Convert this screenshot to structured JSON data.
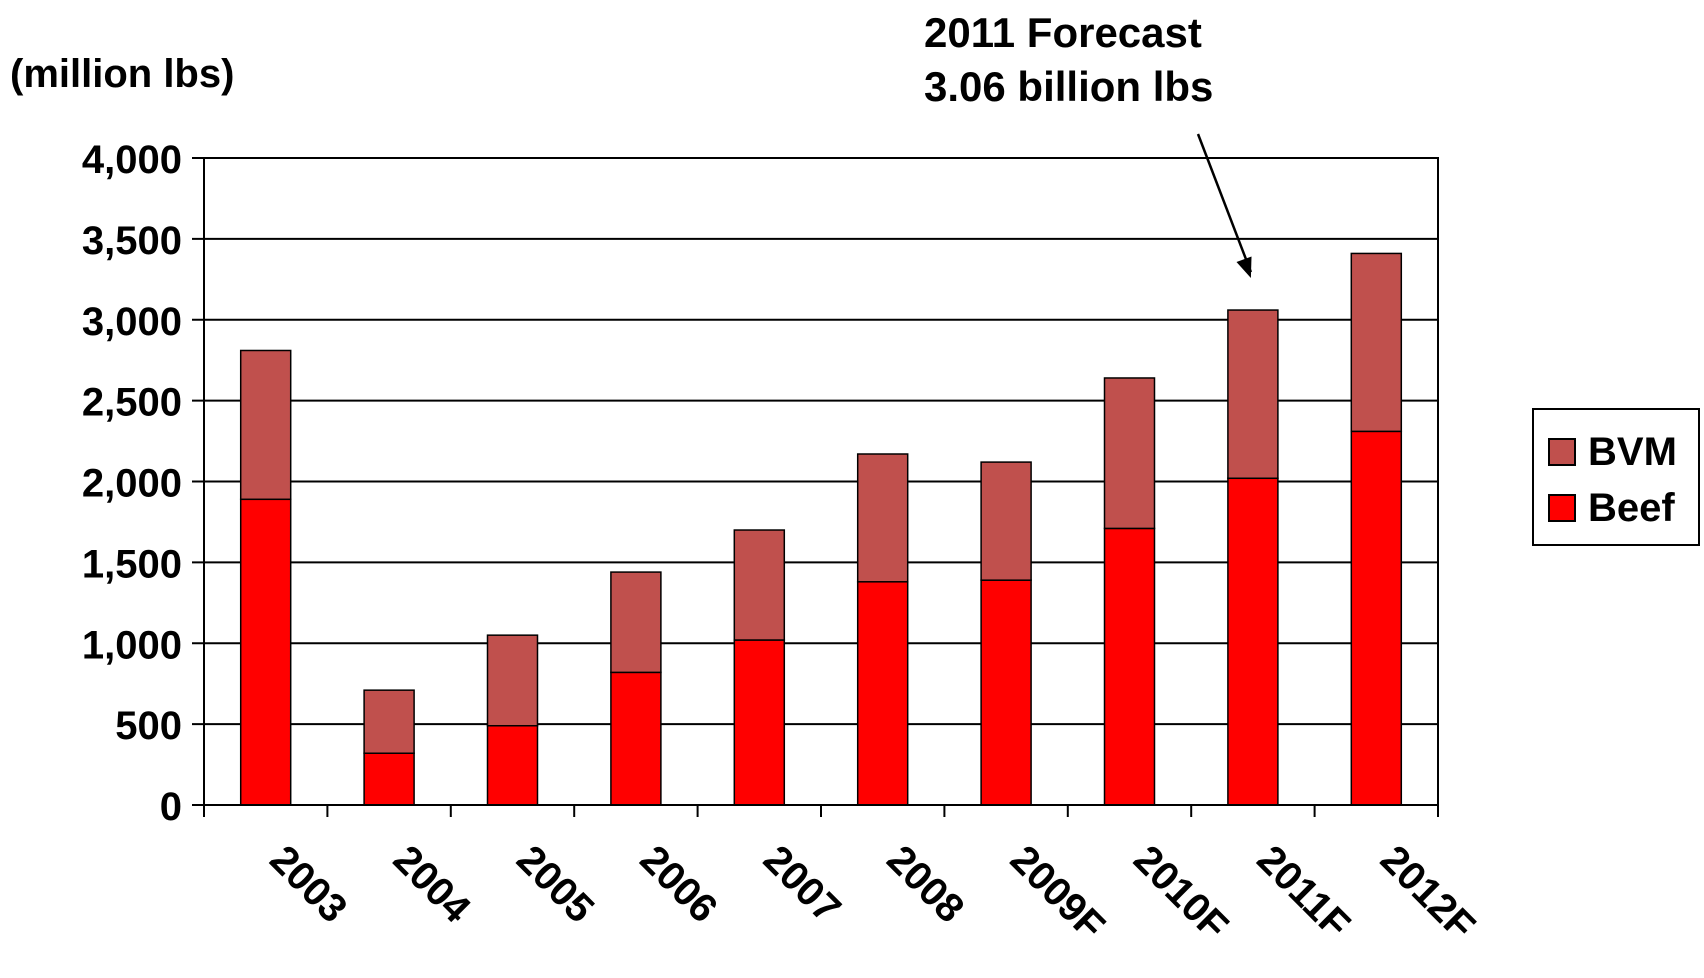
{
  "chart_data": {
    "type": "bar",
    "stacked": true,
    "ylabel": "(million lbs)",
    "xlabel": "",
    "ylim": [
      0,
      4000
    ],
    "yticks": [
      0,
      500,
      1000,
      1500,
      2000,
      2500,
      3000,
      3500,
      4000
    ],
    "ytick_labels": [
      "0",
      "500",
      "1,000",
      "1,500",
      "2,000",
      "2,500",
      "3,000",
      "3,500",
      "4,000"
    ],
    "categories": [
      "2003",
      "2004",
      "2005",
      "2006",
      "2007",
      "2008",
      "2009F",
      "2010F",
      "2011F",
      "2012F"
    ],
    "series": [
      {
        "name": "Beef",
        "color": "#ff0000",
        "values": [
          1890,
          320,
          490,
          820,
          1020,
          1380,
          1390,
          1710,
          2020,
          2310
        ]
      },
      {
        "name": "BVM",
        "color": "#c0504d",
        "values": [
          920,
          390,
          560,
          620,
          680,
          790,
          730,
          930,
          1040,
          1100
        ]
      }
    ],
    "grid": true,
    "legend_position": "right",
    "annotation": {
      "lines": [
        "2011 Forecast",
        "3.06 billion lbs"
      ],
      "target_category": "2011F"
    }
  }
}
